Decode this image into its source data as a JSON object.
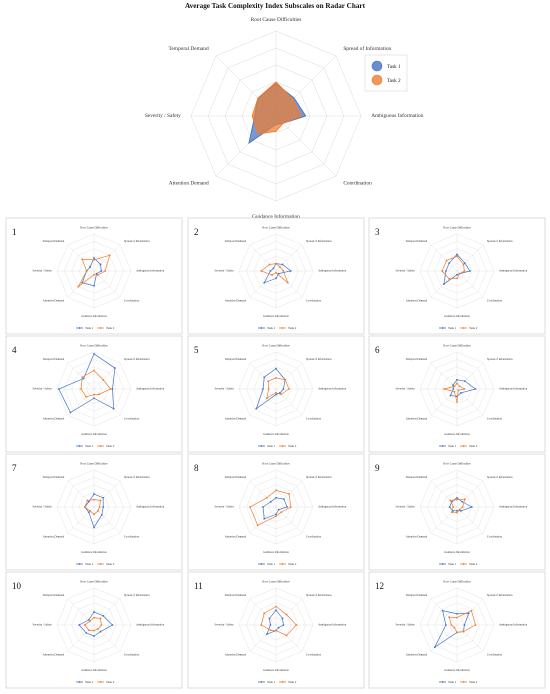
{
  "title": "Average Task Complexity Index Subscales on Radar Chart",
  "colors": {
    "task1": "#4472C4",
    "task2": "#ED7D31",
    "grid": "#D9D9D9",
    "panel_border": "#C8C8C8"
  },
  "axes": [
    "Root Cause Difficulties",
    "Spread of Information",
    "Ambiguous Information",
    "Coordination",
    "Guidance Information",
    "Attention Demand",
    "Severity / Safety",
    "Temporal Demand"
  ],
  "legend": {
    "task1": "Task 1",
    "task2": "Task 2"
  },
  "chart_data": [
    {
      "type": "radar",
      "id": "average",
      "title": "Average Task Complexity Index Subscales on Radar Chart",
      "grid_levels": 5,
      "rmax": 1.0,
      "categories": [
        "Root Cause Difficulties",
        "Spread of Information",
        "Ambiguous Information",
        "Coordination",
        "Guidance Information",
        "Attention Demand",
        "Severity / Safety",
        "Temporal Demand"
      ],
      "series": [
        {
          "name": "Task 1",
          "values": [
            0.38,
            0.3,
            0.35,
            0.12,
            0.1,
            0.45,
            0.25,
            0.3
          ]
        },
        {
          "name": "Task 2",
          "values": [
            0.4,
            0.28,
            0.3,
            0.12,
            0.18,
            0.3,
            0.28,
            0.3
          ]
        }
      ],
      "legend_position": "right"
    },
    {
      "type": "radar",
      "id": "1",
      "label": "1",
      "rmax": 1.0,
      "series": [
        {
          "name": "Task 1",
          "values": [
            0.35,
            0.25,
            0.2,
            0.1,
            0.4,
            0.45,
            0.2,
            0.15
          ]
        },
        {
          "name": "Task 2",
          "values": [
            0.3,
            0.6,
            0.3,
            0.15,
            0.1,
            0.6,
            0.2,
            0.45
          ]
        }
      ]
    },
    {
      "type": "radar",
      "id": "2",
      "label": "2",
      "rmax": 1.0,
      "series": [
        {
          "name": "Task 1",
          "values": [
            0.2,
            0.25,
            0.4,
            0.1,
            0.2,
            0.45,
            0.15,
            0.1
          ]
        },
        {
          "name": "Task 2",
          "values": [
            0.2,
            0.15,
            0.2,
            0.45,
            0.05,
            0.15,
            0.4,
            0.25
          ]
        }
      ]
    },
    {
      "type": "radar",
      "id": "3",
      "label": "3",
      "rmax": 1.0,
      "series": [
        {
          "name": "Task 1",
          "values": [
            0.45,
            0.3,
            0.35,
            0.1,
            0.1,
            0.5,
            0.3,
            0.3
          ]
        },
        {
          "name": "Task 2",
          "values": [
            0.4,
            0.25,
            0.2,
            0.1,
            0.2,
            0.3,
            0.4,
            0.4
          ]
        }
      ]
    },
    {
      "type": "radar",
      "id": "4",
      "label": "4",
      "rmax": 1.0,
      "series": [
        {
          "name": "Task 1",
          "values": [
            0.95,
            0.8,
            0.5,
            0.75,
            0.25,
            0.9,
            0.95,
            0.4
          ]
        },
        {
          "name": "Task 2",
          "values": [
            0.5,
            0.35,
            0.45,
            0.2,
            0.15,
            0.3,
            0.35,
            0.45
          ]
        }
      ]
    },
    {
      "type": "radar",
      "id": "5",
      "label": "5",
      "rmax": 1.0,
      "series": [
        {
          "name": "Task 1",
          "values": [
            0.55,
            0.35,
            0.2,
            0.15,
            0.15,
            0.75,
            0.35,
            0.45
          ]
        },
        {
          "name": "Task 2",
          "values": [
            0.3,
            0.35,
            0.35,
            0.2,
            0.1,
            0.35,
            0.2,
            0.3
          ]
        }
      ]
    },
    {
      "type": "radar",
      "id": "6",
      "label": "6",
      "rmax": 1.0,
      "series": [
        {
          "name": "Task 1",
          "values": [
            0.25,
            0.3,
            0.5,
            0.15,
            0.2,
            0.25,
            0.1,
            0.15
          ]
        },
        {
          "name": "Task 2",
          "values": [
            0.15,
            0.1,
            0.2,
            0.05,
            0.35,
            0.1,
            0.35,
            0.1
          ]
        }
      ]
    },
    {
      "type": "radar",
      "id": "7",
      "label": "7",
      "rmax": 1.0,
      "series": [
        {
          "name": "Task 1",
          "values": [
            0.35,
            0.35,
            0.25,
            0.3,
            0.55,
            0.2,
            0.25,
            0.2
          ]
        },
        {
          "name": "Task 2",
          "values": [
            0.2,
            0.25,
            0.15,
            0.15,
            0.2,
            0.15,
            0.25,
            0.25
          ]
        }
      ]
    },
    {
      "type": "radar",
      "id": "8",
      "label": "8",
      "rmax": 1.0,
      "series": [
        {
          "name": "Task 1",
          "values": [
            0.25,
            0.3,
            0.3,
            0.1,
            0.2,
            0.45,
            0.35,
            0.2
          ]
        },
        {
          "name": "Task 2",
          "values": [
            0.45,
            0.5,
            0.4,
            0.2,
            0.25,
            0.7,
            0.7,
            0.35
          ]
        }
      ]
    },
    {
      "type": "radar",
      "id": "9",
      "label": "9",
      "rmax": 1.0,
      "series": [
        {
          "name": "Task 1",
          "values": [
            0.25,
            0.2,
            0.4,
            0.15,
            0.1,
            0.15,
            0.2,
            0.2
          ]
        },
        {
          "name": "Task 2",
          "values": [
            0.2,
            0.3,
            0.15,
            0.1,
            0.15,
            0.2,
            0.1,
            0.25
          ]
        }
      ]
    },
    {
      "type": "radar",
      "id": "10",
      "label": "10",
      "rmax": 1.0,
      "series": [
        {
          "name": "Task 1",
          "values": [
            0.35,
            0.35,
            0.5,
            0.25,
            0.3,
            0.3,
            0.4,
            0.2
          ]
        },
        {
          "name": "Task 2",
          "values": [
            0.2,
            0.25,
            0.2,
            0.15,
            0.15,
            0.2,
            0.25,
            0.15
          ]
        }
      ]
    },
    {
      "type": "radar",
      "id": "11",
      "label": "11",
      "rmax": 1.0,
      "series": [
        {
          "name": "Task 1",
          "values": [
            0.4,
            0.25,
            0.2,
            0.1,
            0.15,
            0.35,
            0.15,
            0.25
          ]
        },
        {
          "name": "Task 2",
          "values": [
            0.5,
            0.4,
            0.55,
            0.4,
            0.15,
            0.2,
            0.4,
            0.45
          ]
        }
      ]
    },
    {
      "type": "radar",
      "id": "12",
      "label": "12",
      "rmax": 1.0,
      "series": [
        {
          "name": "Task 1",
          "values": [
            0.3,
            0.45,
            0.2,
            0.25,
            0.2,
            0.85,
            0.3,
            0.55
          ]
        },
        {
          "name": "Task 2",
          "values": [
            0.2,
            0.55,
            0.5,
            0.25,
            0.2,
            0.1,
            0.15,
            0.3
          ]
        }
      ]
    }
  ]
}
